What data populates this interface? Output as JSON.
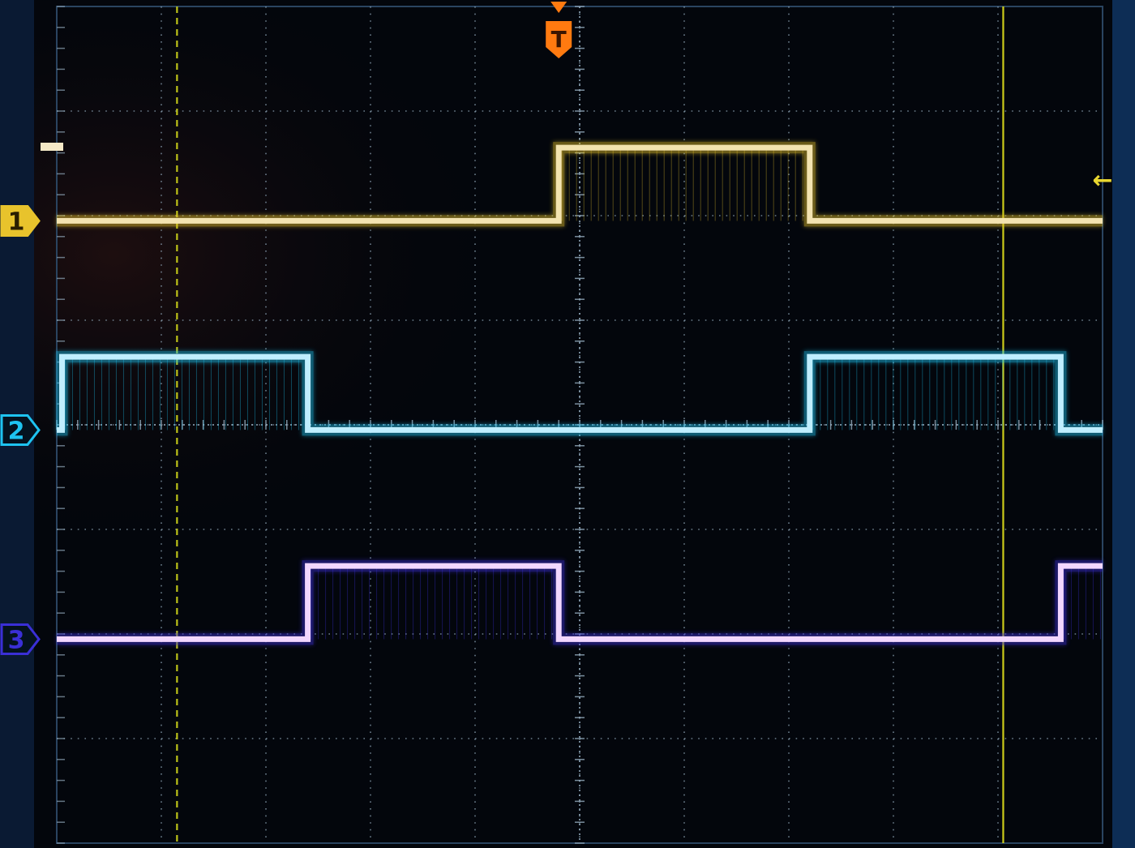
{
  "chart_data": {
    "type": "line",
    "title": "",
    "xlabel": "",
    "ylabel": "",
    "grid": true,
    "x_divisions": 10,
    "y_divisions": 8,
    "xlim": [
      0,
      10
    ],
    "channels": [
      {
        "name": "1",
        "color": "#f3e3b0",
        "marker_color": "#e8c32c",
        "edges": [
          0,
          4.8,
          7.2,
          10
        ],
        "levels": [
          0,
          1,
          0
        ]
      },
      {
        "name": "2",
        "color": "#bfeeff",
        "marker_color": "#1ec3f0",
        "edges": [
          0,
          0.05,
          2.4,
          7.2,
          9.6,
          10
        ],
        "levels": [
          0,
          1,
          0,
          1,
          0
        ]
      },
      {
        "name": "3",
        "color": "#f2d7ff",
        "marker_color": "#3a2fd6",
        "edges": [
          0,
          2.4,
          4.8,
          9.6,
          10
        ],
        "levels": [
          0,
          1,
          0,
          1
        ]
      }
    ],
    "trigger": {
      "label": "T",
      "position_div": 4.8,
      "color": "#ff7a10"
    },
    "cursors": [
      {
        "type": "vertical",
        "style": "dashed",
        "position_div": 1.15,
        "color": "#d2d81a"
      },
      {
        "type": "vertical",
        "style": "solid",
        "position_div": 9.05,
        "color": "#e2e21c"
      }
    ],
    "trigger_level_marker": {
      "symbol": "←",
      "color": "#e8d630"
    }
  }
}
